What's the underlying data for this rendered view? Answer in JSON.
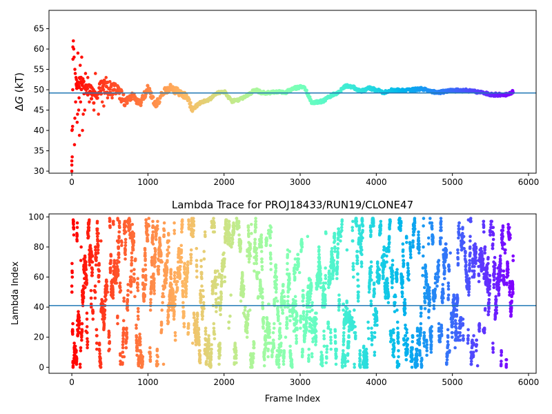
{
  "chart_data": [
    {
      "type": "scatter",
      "title": "",
      "xlabel": "",
      "ylabel": "ΔG (kT)",
      "ylabel_symbol": "Δ",
      "ylabel_var": "G",
      "ylabel_unit": " (kT)",
      "xlim": [
        -300,
        6100
      ],
      "ylim": [
        29.5,
        69.5
      ],
      "xticks": [
        0,
        1000,
        2000,
        3000,
        4000,
        5000,
        6000
      ],
      "yticks": [
        30,
        35,
        40,
        45,
        50,
        55,
        60,
        65
      ],
      "reference_line": 49.2,
      "reference_line_color": "#1f77b4",
      "colormap": "rainbow",
      "x_max_frame": 5800,
      "trace_anchors": [
        [
          0,
          49.5
        ],
        [
          100,
          52
        ],
        [
          200,
          50.5
        ],
        [
          300,
          48
        ],
        [
          400,
          51
        ],
        [
          500,
          50.2
        ],
        [
          600,
          49.8
        ],
        [
          700,
          47.2
        ],
        [
          800,
          48.5
        ],
        [
          900,
          46.5
        ],
        [
          1000,
          50.5
        ],
        [
          1100,
          46
        ],
        [
          1200,
          49.5
        ],
        [
          1300,
          50.5
        ],
        [
          1400,
          49.4
        ],
        [
          1500,
          48.5
        ],
        [
          1580,
          45.2
        ],
        [
          1700,
          47
        ],
        [
          1800,
          47.5
        ],
        [
          1900,
          49.2
        ],
        [
          2000,
          49.6
        ],
        [
          2100,
          47.2
        ],
        [
          2200,
          47.5
        ],
        [
          2300,
          48.4
        ],
        [
          2400,
          50
        ],
        [
          2500,
          49.3
        ],
        [
          2600,
          49.2
        ],
        [
          2700,
          49.5
        ],
        [
          2800,
          49.2
        ],
        [
          2900,
          50.3
        ],
        [
          3050,
          50.8
        ],
        [
          3150,
          47
        ],
        [
          3200,
          46.9
        ],
        [
          3300,
          47.2
        ],
        [
          3400,
          48.5
        ],
        [
          3500,
          49.3
        ],
        [
          3600,
          50.9
        ],
        [
          3700,
          50.6
        ],
        [
          3800,
          49.6
        ],
        [
          3900,
          50.4
        ],
        [
          4000,
          50
        ],
        [
          4100,
          49.3
        ],
        [
          4200,
          49.9
        ],
        [
          4400,
          49.8
        ],
        [
          4600,
          50.2
        ],
        [
          4800,
          49.3
        ],
        [
          5000,
          49.8
        ],
        [
          5200,
          49.8
        ],
        [
          5400,
          49.3
        ],
        [
          5500,
          48.8
        ],
        [
          5700,
          48.8
        ],
        [
          5800,
          49.5
        ]
      ],
      "early_points": [
        [
          0,
          30
        ],
        [
          0,
          31.5
        ],
        [
          0,
          32.5
        ],
        [
          5,
          33.5
        ],
        [
          2,
          40
        ],
        [
          6,
          40.2
        ],
        [
          10,
          41
        ],
        [
          12,
          50
        ],
        [
          14,
          60.5
        ],
        [
          20,
          62
        ],
        [
          25,
          60
        ],
        [
          30,
          58
        ],
        [
          40,
          55
        ],
        [
          45,
          54
        ],
        [
          55,
          53
        ],
        [
          60,
          52.5
        ],
        [
          15,
          57.5
        ],
        [
          35,
          36.5
        ],
        [
          40,
          43
        ],
        [
          50,
          47
        ],
        [
          60,
          51
        ],
        [
          75,
          44
        ],
        [
          80,
          59
        ],
        [
          90,
          45
        ],
        [
          95,
          48
        ],
        [
          110,
          56
        ],
        [
          115,
          47
        ],
        [
          120,
          52
        ],
        [
          130,
          58
        ],
        [
          140,
          40
        ],
        [
          150,
          44
        ],
        [
          160,
          49
        ],
        [
          170,
          45
        ],
        [
          180,
          54
        ],
        [
          190,
          50
        ],
        [
          210,
          53
        ],
        [
          230,
          47
        ],
        [
          250,
          51
        ],
        [
          270,
          49
        ],
        [
          290,
          45
        ],
        [
          310,
          54
        ],
        [
          330,
          48
        ],
        [
          350,
          44
        ],
        [
          380,
          52
        ],
        [
          400,
          47
        ],
        [
          420,
          46
        ],
        [
          450,
          53
        ],
        [
          470,
          48
        ],
        [
          500,
          52
        ],
        [
          530,
          48
        ],
        [
          560,
          51
        ],
        [
          600,
          50
        ],
        [
          650,
          47
        ],
        [
          100,
          38.8
        ],
        [
          70,
          42
        ]
      ]
    },
    {
      "type": "scatter",
      "title": "Lambda Trace for PROJ18433/RUN19/CLONE47",
      "xlabel": "Frame Index",
      "ylabel": "Lambda Index",
      "xlim": [
        -300,
        6100
      ],
      "ylim": [
        -4,
        102
      ],
      "xticks": [
        0,
        1000,
        2000,
        3000,
        4000,
        5000,
        6000
      ],
      "yticks": [
        0,
        20,
        40,
        60,
        80,
        100
      ],
      "reference_line": 41,
      "reference_line_color": "#1f77b4",
      "colormap": "rainbow",
      "x_max_frame": 5800,
      "point_count": 5800,
      "lambda_range": [
        0,
        99
      ]
    }
  ]
}
